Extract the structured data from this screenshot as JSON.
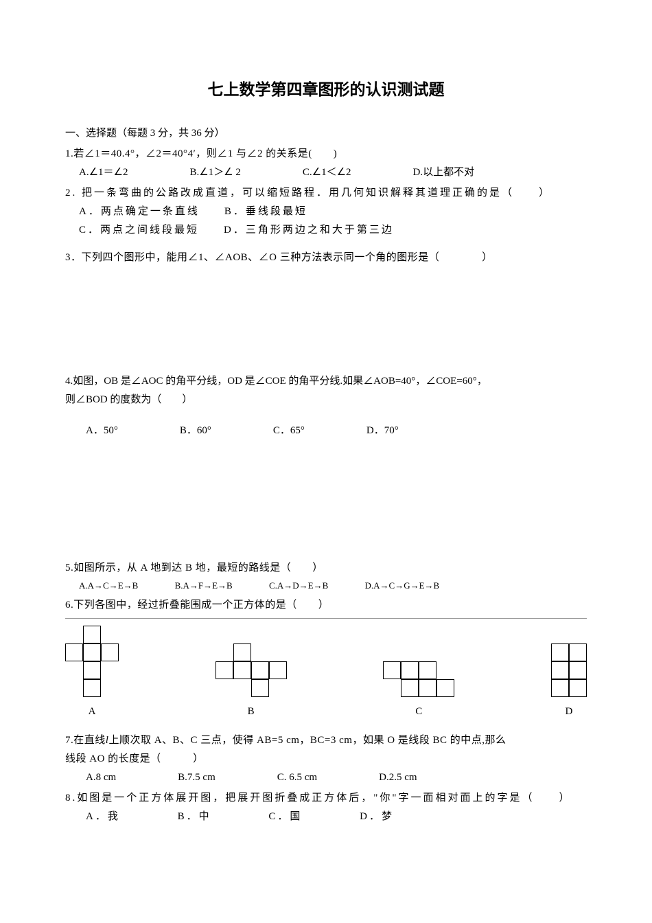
{
  "title": "七上数学第四章图形的认识测试题",
  "section1": {
    "header": "一、选择题（每题 3 分，共 36 分）"
  },
  "q1": {
    "text": "1.若∠1＝40.4°，∠2＝40°4′，则∠1 与∠2 的关系是(　　)",
    "optA": "A.∠1＝∠2",
    "optB": "B.∠1＞∠ 2",
    "optC": "C.∠1＜∠2",
    "optD": "D.以上都不对"
  },
  "q2": {
    "text": "2. 把一条弯曲的公路改成直道，可以缩短路程．用几何知识解释其道理正确的是（　　）",
    "lineA": "A．两点确定一条直线　　B．垂线段最短",
    "lineB": "C．两点之间线段最短　　D．三角形两边之和大于第三边"
  },
  "q3": {
    "text": "3．下列四个图形中，能用∠1、∠AOB、∠O 三种方法表示同一个角的图形是（　　　　）"
  },
  "q4": {
    "line1": "4.如图，OB 是∠AOC 的角平分线，OD 是∠COE 的角平分线.如果∠AOB=40°，∠COE=60°，",
    "line2": "则∠BOD 的度数为（　　）",
    "optA": "A．50°",
    "optB": "B．60°",
    "optC": "C．65°",
    "optD": "D．70°"
  },
  "q5": {
    "text": "5.如图所示，从 A 地到达 B 地，最短的路线是（　　）",
    "optA": "A.A→C→E→B",
    "optB": "B.A→F→E→B",
    "optC": "C.A→D→E→B",
    "optD": "D.A→C→G→E→B"
  },
  "q6": {
    "text": "6.下列各图中，经过折叠能围成一个正方体的是（　　）",
    "labelA": "A",
    "labelB": "B",
    "labelC": "C",
    "labelD": "D"
  },
  "q7": {
    "line1a": "7.在直线",
    "line1b": "l",
    "line1c": "上顺次取 A、B、C 三点，使得 AB=5 cm，BC=3 cm，如果 O 是线段 BC 的中点,那么",
    "line2": "线段 AO 的长度是（　　　）",
    "optA": "A.8 cm",
    "optB": "B.7.5 cm",
    "optC": "C. 6.5 cm",
    "optD": "D.2.5 cm"
  },
  "q8": {
    "line1": "8.如图是一个正方体展开图，把展开图折叠成正方体后，\"你\"字一面相对面上的字是（　　）",
    "optA": "A．我",
    "optB": "B．中",
    "optC": "C．国",
    "optD": "D．梦"
  },
  "nets": {
    "A": {
      "rows": 4,
      "cols": 3,
      "cells": [
        [
          0,
          1,
          0
        ],
        [
          1,
          1,
          1
        ],
        [
          0,
          1,
          0
        ],
        [
          0,
          1,
          0
        ]
      ]
    },
    "B": {
      "rows": 3,
      "cols": 4,
      "cells": [
        [
          0,
          1,
          0,
          0
        ],
        [
          1,
          1,
          1,
          1
        ],
        [
          0,
          0,
          1,
          0
        ]
      ]
    },
    "C": {
      "rows": 2,
      "cols": 4,
      "cells": [
        [
          1,
          1,
          1,
          0
        ],
        [
          0,
          1,
          1,
          1
        ]
      ]
    },
    "D": {
      "rows": 3,
      "cols": 2,
      "cells": [
        [
          1,
          1
        ],
        [
          1,
          1
        ],
        [
          1,
          1
        ]
      ]
    }
  }
}
